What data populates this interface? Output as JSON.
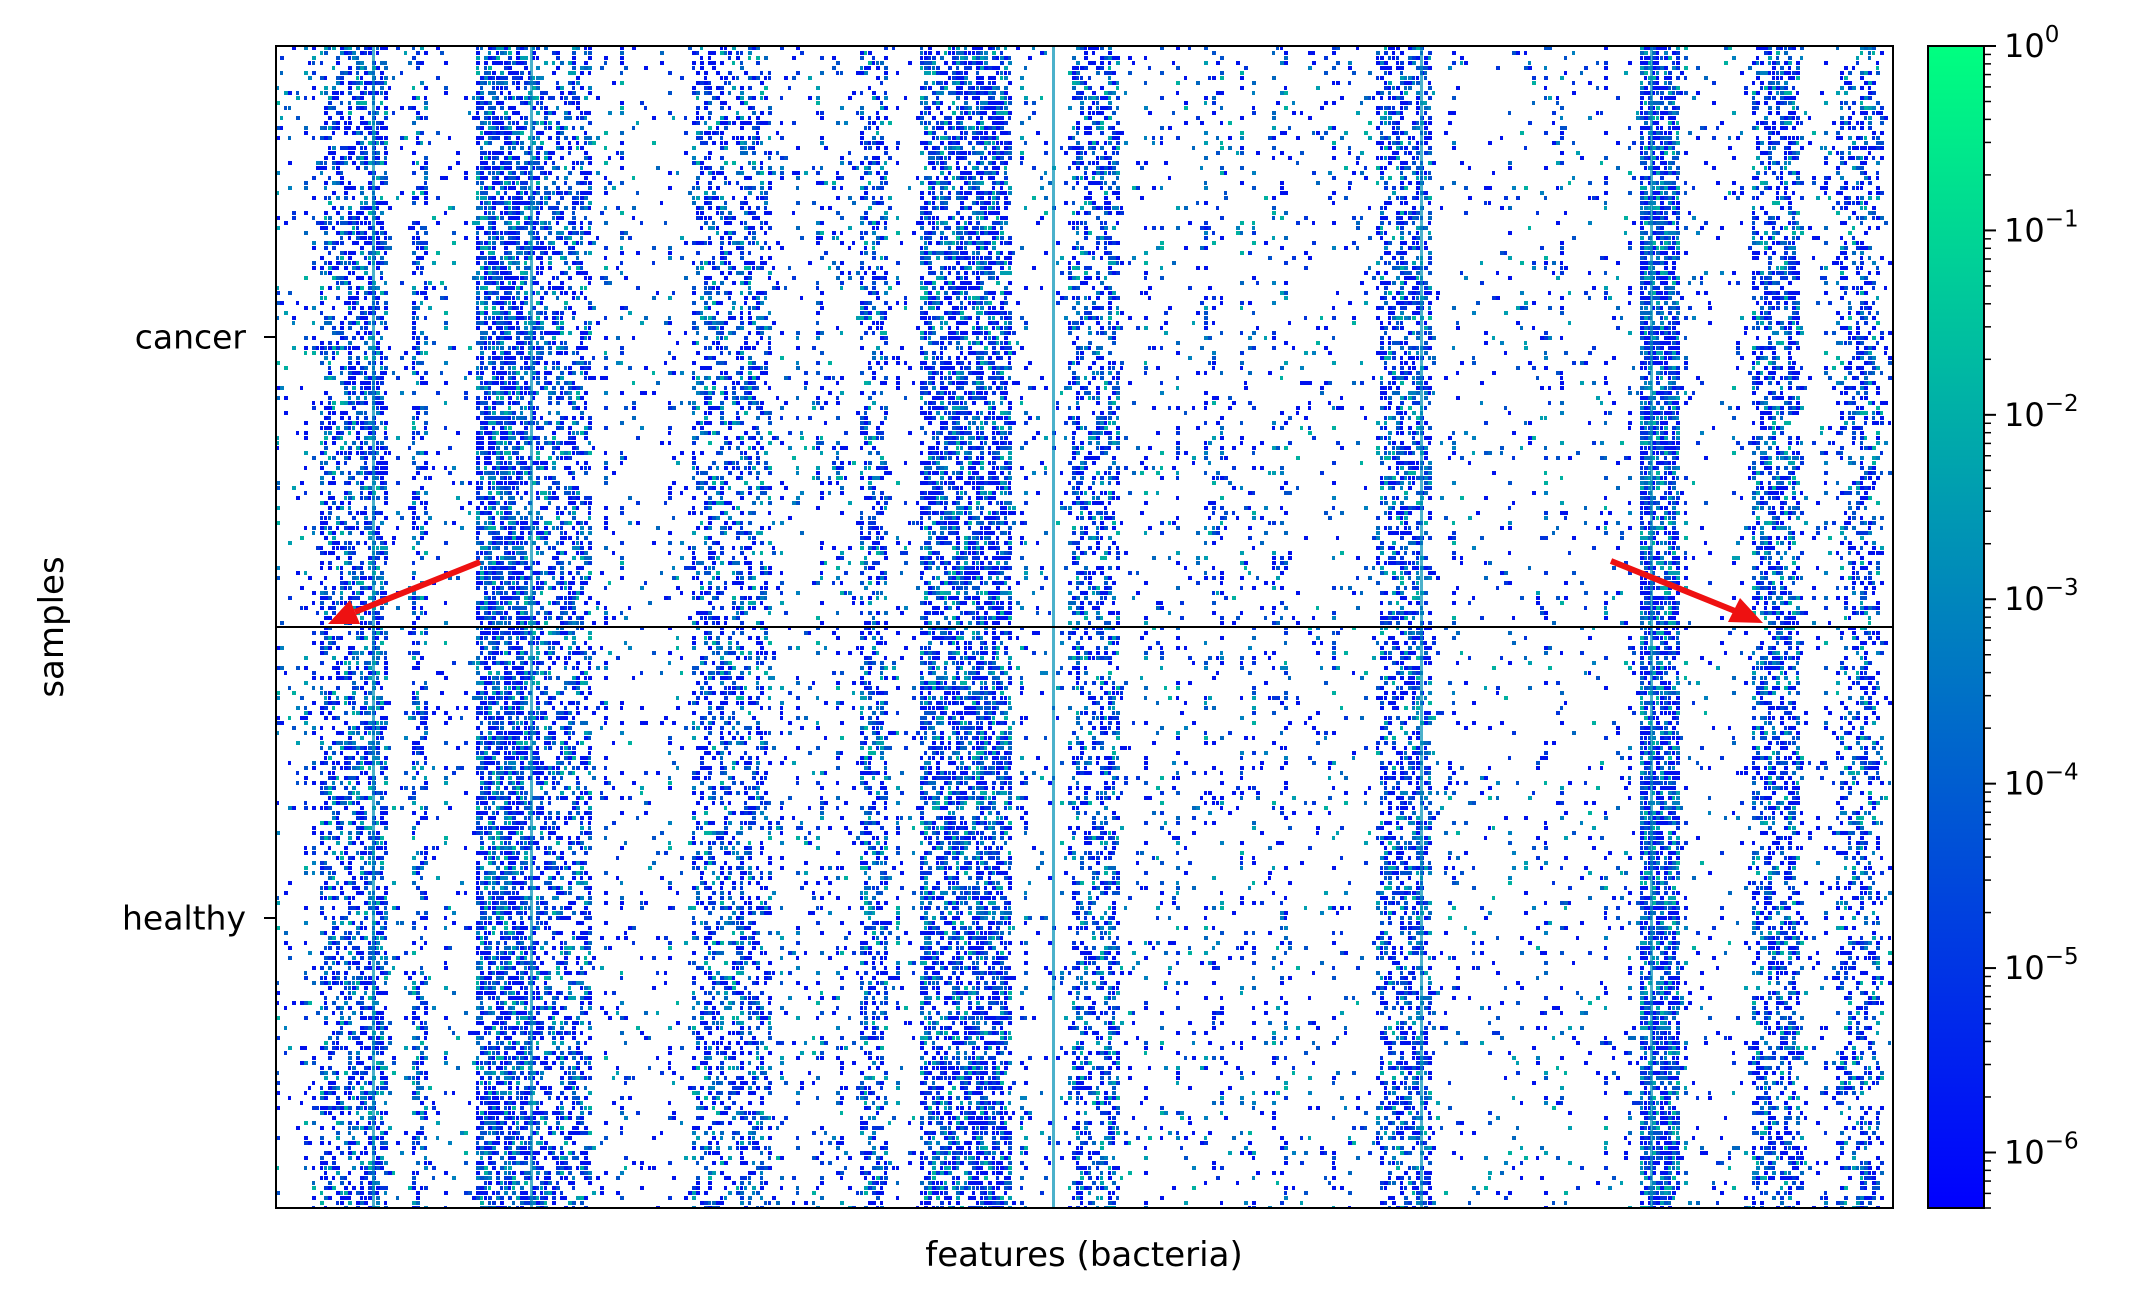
{
  "chart_data": [
    {
      "type": "heatmap",
      "title": "",
      "xlabel": "features (bacteria)",
      "ylabel": "samples",
      "y_tick_labels": [
        "cancer",
        "healthy"
      ],
      "groups": [
        "cancer",
        "healthy"
      ],
      "x_ticks_shown": false,
      "value_scale": "log",
      "value_range": [
        5e-07,
        1
      ],
      "group_separator_line": true,
      "annotations": [
        {
          "type": "arrow",
          "color": "#ee1111",
          "points_to": "group boundary, left"
        },
        {
          "type": "arrow",
          "color": "#ee1111",
          "points_to": "group boundary, right"
        }
      ],
      "grid": false
    },
    {
      "type": "colorbar",
      "scale": "log",
      "colormap": [
        "#0000ff",
        "#0080bf",
        "#00ff80"
      ],
      "ylim": [
        5e-07,
        1
      ],
      "ticks": [
        {
          "base": "10",
          "exp": "0"
        },
        {
          "base": "10",
          "exp": "−1"
        },
        {
          "base": "10",
          "exp": "−2"
        },
        {
          "base": "10",
          "exp": "−3"
        },
        {
          "base": "10",
          "exp": "−4"
        },
        {
          "base": "10",
          "exp": "−5"
        },
        {
          "base": "10",
          "exp": "−6"
        }
      ]
    }
  ],
  "colors": {
    "low": "#0000ff",
    "mid": "#0080bf",
    "high": "#00ff80",
    "arrow": "#ee1111",
    "background": "#ffffff"
  }
}
